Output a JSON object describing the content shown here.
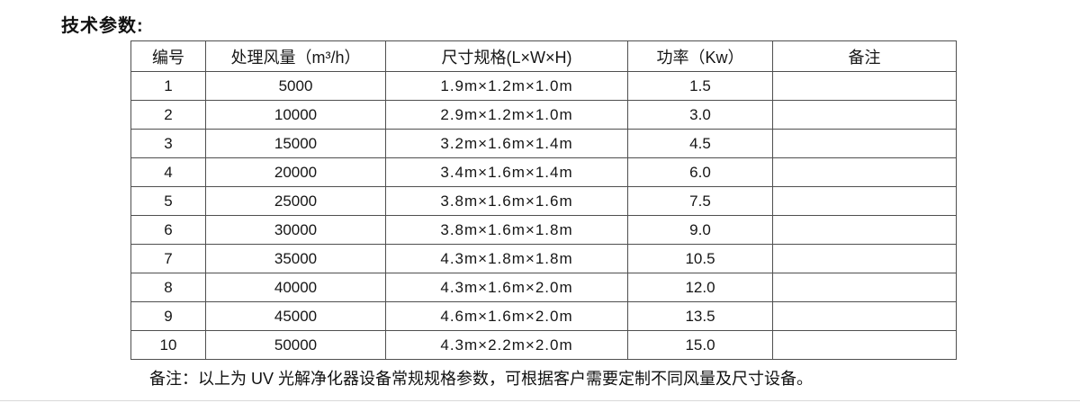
{
  "page": {
    "title": "技术参数:"
  },
  "table": {
    "headers": {
      "no": "编号",
      "airflow": "处理风量（m³/h）",
      "size": "尺寸规格(L×W×H)",
      "power": "功率（Kw）",
      "remark": "备注"
    },
    "rows": [
      {
        "no": "1",
        "airflow": "5000",
        "size": "1.9m×1.2m×1.0m",
        "power": "1.5",
        "remark": ""
      },
      {
        "no": "2",
        "airflow": "10000",
        "size": "2.9m×1.2m×1.0m",
        "power": "3.0",
        "remark": ""
      },
      {
        "no": "3",
        "airflow": "15000",
        "size": "3.2m×1.6m×1.4m",
        "power": "4.5",
        "remark": ""
      },
      {
        "no": "4",
        "airflow": "20000",
        "size": "3.4m×1.6m×1.4m",
        "power": "6.0",
        "remark": ""
      },
      {
        "no": "5",
        "airflow": "25000",
        "size": "3.8m×1.6m×1.6m",
        "power": "7.5",
        "remark": ""
      },
      {
        "no": "6",
        "airflow": "30000",
        "size": "3.8m×1.6m×1.8m",
        "power": "9.0",
        "remark": ""
      },
      {
        "no": "7",
        "airflow": "35000",
        "size": "4.3m×1.8m×1.8m",
        "power": "10.5",
        "remark": ""
      },
      {
        "no": "8",
        "airflow": "40000",
        "size": "4.3m×1.6m×2.0m",
        "power": "12.0",
        "remark": ""
      },
      {
        "no": "9",
        "airflow": "45000",
        "size": "4.6m×1.6m×2.0m",
        "power": "13.5",
        "remark": ""
      },
      {
        "no": "10",
        "airflow": "50000",
        "size": "4.3m×2.2m×2.0m",
        "power": "15.0",
        "remark": ""
      }
    ]
  },
  "footer": {
    "note": "备注：以上为 UV 光解净化器设备常规规格参数，可根据客户需要定制不同风量及尺寸设备。"
  },
  "colors": {
    "border": "#4f4f4f",
    "text": "#161616",
    "background": "#ffffff",
    "bottom_divider": "#d9d9d9"
  }
}
